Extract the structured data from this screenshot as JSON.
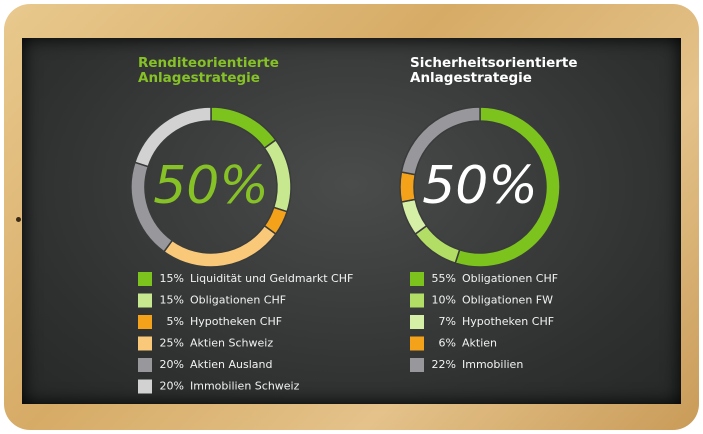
{
  "chart_data": [
    {
      "type": "pie",
      "title": "Renditeorientierte Anlagestrategie",
      "center_label": "50%",
      "categories": [
        "Liquidität und Geldmarkt CHF",
        "Obligationen CHF",
        "Hypotheken CHF",
        "Aktien Schweiz",
        "Aktien Ausland",
        "Immobilien Schweiz"
      ],
      "values": [
        15,
        15,
        5,
        25,
        20,
        20
      ],
      "value_labels": [
        "15%",
        "15%",
        "5%",
        "25%",
        "20%",
        "20%"
      ],
      "colors": [
        "#7dc31d",
        "#c8e890",
        "#f5a21b",
        "#f9c878",
        "#98989c",
        "#d2d2d2"
      ]
    },
    {
      "type": "pie",
      "title": "Sicherheitsorientierte Anlagestrategie",
      "center_label": "50%",
      "categories": [
        "Obligationen CHF",
        "Obligationen FW",
        "Hypotheken CHF",
        "Aktien",
        "Immobilien"
      ],
      "values": [
        55,
        10,
        7,
        6,
        22
      ],
      "value_labels": [
        "55%",
        "10%",
        "7%",
        "6%",
        "22%"
      ],
      "colors": [
        "#7dc31d",
        "#b3de66",
        "#d5efa6",
        "#f5a21b",
        "#98989c"
      ]
    }
  ]
}
